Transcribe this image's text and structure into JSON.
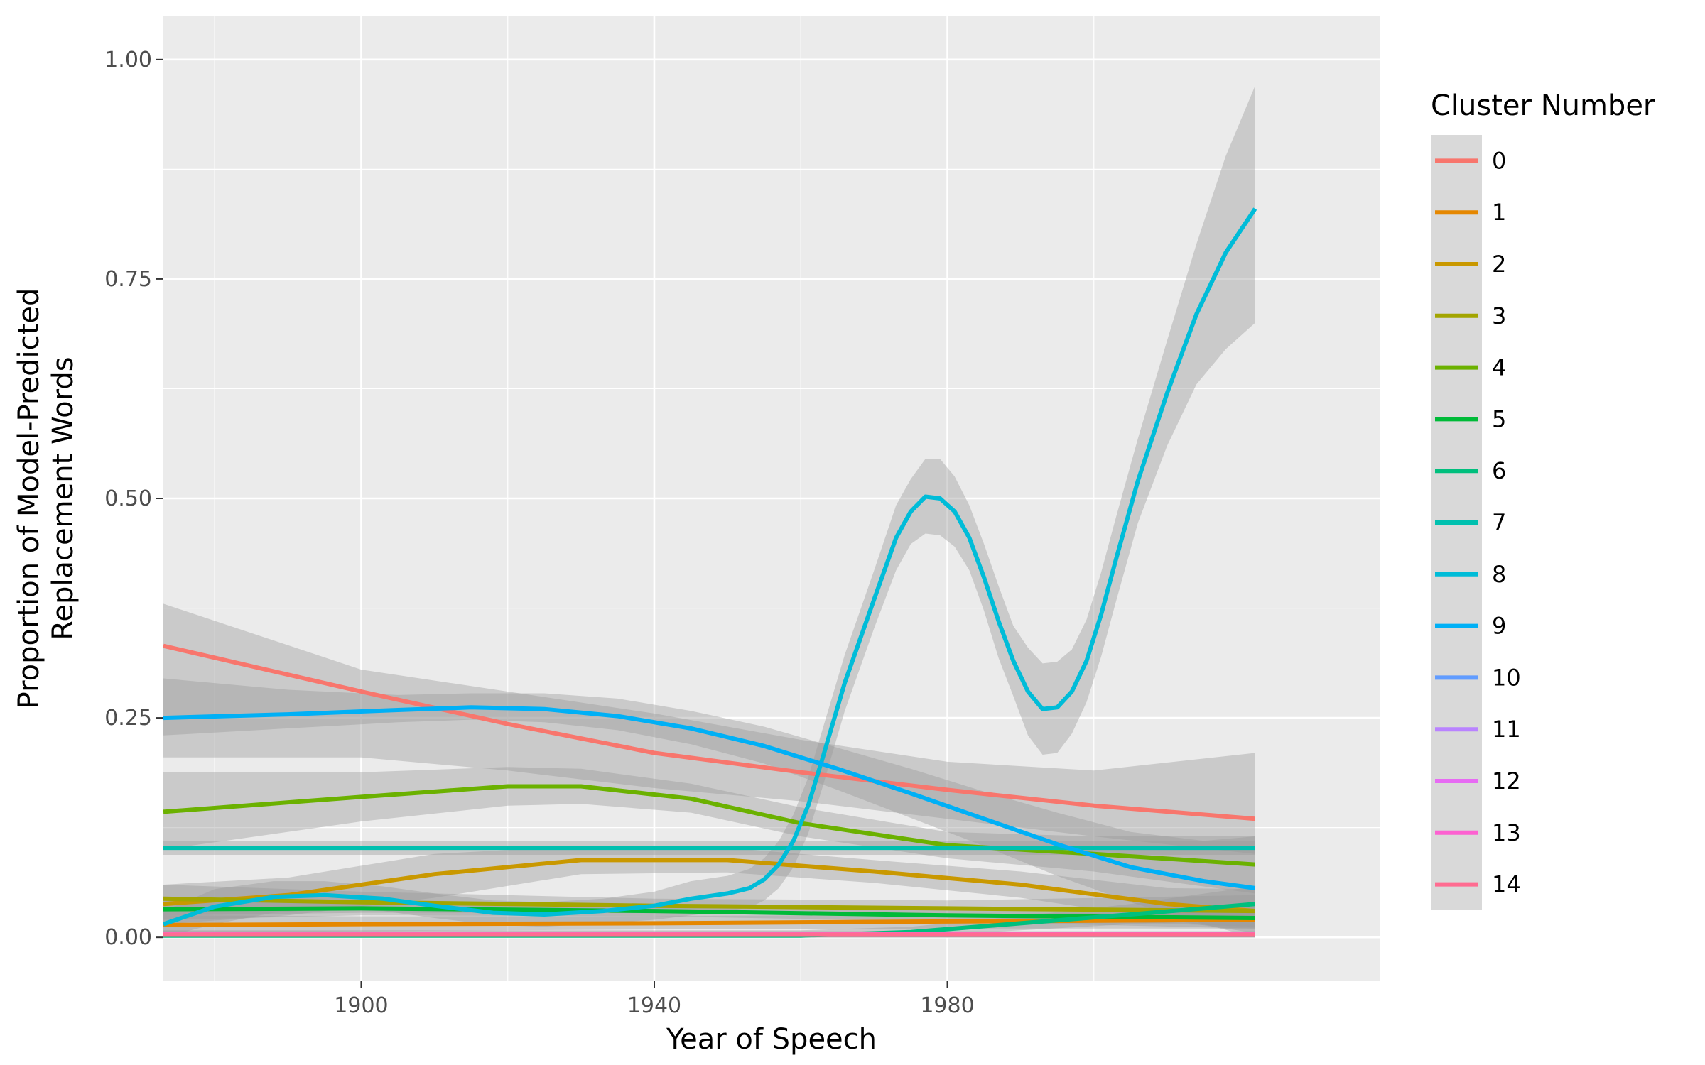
{
  "chart_data": {
    "type": "line",
    "title": "",
    "xlabel": "Year of Speech",
    "ylabel_lines": [
      "Proportion of Model-Predicted",
      "Replacement Words"
    ],
    "xlim": [
      1873,
      2039
    ],
    "ylim": [
      -0.05,
      1.05
    ],
    "x_ticks": [
      1900,
      1940,
      1980
    ],
    "x_tick_labels": [
      "1900",
      "1940",
      "1980"
    ],
    "x_minor_ticks": [
      1880,
      1920,
      1960,
      2000
    ],
    "y_ticks": [
      0,
      0.25,
      0.5,
      0.75,
      1.0
    ],
    "y_tick_labels": [
      "0.00",
      "0.25",
      "0.50",
      "0.75",
      "1.00"
    ],
    "grid": true,
    "legend": {
      "title": "Cluster Number",
      "position": "right"
    },
    "series": [
      {
        "name": "0",
        "color": "#F8766D",
        "x": [
          1873,
          1900,
          1920,
          1940,
          1960,
          1980,
          2000,
          2022
        ],
        "y": [
          0.332,
          0.28,
          0.243,
          0.21,
          0.188,
          0.168,
          0.15,
          0.135
        ],
        "ci_lower": [
          0.205,
          0.205,
          0.19,
          0.17,
          0.155,
          0.135,
          0.115,
          0.095
        ],
        "ci_upper": [
          0.38,
          0.305,
          0.28,
          0.255,
          0.225,
          0.2,
          0.19,
          0.21
        ]
      },
      {
        "name": "1",
        "color": "#E58700",
        "x": [
          1873,
          1900,
          1940,
          1980,
          2022
        ],
        "y": [
          0.014,
          0.015,
          0.016,
          0.018,
          0.02
        ],
        "ci_lower": [
          0.005,
          0.007,
          0.009,
          0.01,
          0.01
        ],
        "ci_upper": [
          0.025,
          0.024,
          0.024,
          0.026,
          0.03
        ]
      },
      {
        "name": "2",
        "color": "#C99800",
        "x": [
          1873,
          1890,
          1910,
          1930,
          1950,
          1970,
          1990,
          2010,
          2022
        ],
        "y": [
          0.038,
          0.048,
          0.072,
          0.088,
          0.088,
          0.075,
          0.06,
          0.038,
          0.03
        ],
        "ci_lower": [
          0.015,
          0.025,
          0.045,
          0.072,
          0.074,
          0.062,
          0.045,
          0.02,
          0.005
        ],
        "ci_upper": [
          0.06,
          0.068,
          0.095,
          0.104,
          0.102,
          0.088,
          0.075,
          0.056,
          0.055
        ]
      },
      {
        "name": "3",
        "color": "#A3A500",
        "x": [
          1873,
          1900,
          1940,
          1980,
          2022
        ],
        "y": [
          0.044,
          0.04,
          0.036,
          0.033,
          0.03
        ],
        "ci_lower": [
          0.025,
          0.028,
          0.028,
          0.024,
          0.012
        ],
        "ci_upper": [
          0.06,
          0.052,
          0.044,
          0.042,
          0.048
        ]
      },
      {
        "name": "4",
        "color": "#6BB100",
        "x": [
          1873,
          1900,
          1920,
          1930,
          1945,
          1960,
          1980,
          2000,
          2022
        ],
        "y": [
          0.143,
          0.16,
          0.172,
          0.172,
          0.158,
          0.13,
          0.105,
          0.095,
          0.083
        ],
        "ci_lower": [
          0.1,
          0.132,
          0.15,
          0.152,
          0.142,
          0.115,
          0.09,
          0.075,
          0.05
        ],
        "ci_upper": [
          0.188,
          0.188,
          0.194,
          0.192,
          0.175,
          0.148,
          0.12,
          0.115,
          0.115
        ]
      },
      {
        "name": "5",
        "color": "#00BA38",
        "x": [
          1873,
          1900,
          1940,
          1980,
          2022
        ],
        "y": [
          0.032,
          0.033,
          0.03,
          0.025,
          0.022
        ],
        "ci_lower": [
          0.02,
          0.025,
          0.024,
          0.018,
          0.01
        ],
        "ci_upper": [
          0.045,
          0.041,
          0.036,
          0.032,
          0.034
        ]
      },
      {
        "name": "6",
        "color": "#00BF7D",
        "x": [
          1873,
          1960,
          1975,
          1990,
          2005,
          2022
        ],
        "y": [
          0.002,
          0.002,
          0.006,
          0.016,
          0.026,
          0.038
        ],
        "ci_lower": [
          0.0,
          0.0,
          0.001,
          0.008,
          0.015,
          0.02
        ],
        "ci_upper": [
          0.008,
          0.008,
          0.012,
          0.024,
          0.038,
          0.058
        ]
      },
      {
        "name": "7",
        "color": "#00C0AF",
        "x": [
          1873,
          2022
        ],
        "y": [
          0.102,
          0.102
        ],
        "ci_lower": [
          0.094,
          0.094
        ],
        "ci_upper": [
          0.11,
          0.11
        ]
      },
      {
        "name": "8",
        "color": "#00BCD8",
        "x": [
          1873,
          1880,
          1888,
          1895,
          1903,
          1910,
          1918,
          1925,
          1933,
          1940,
          1945,
          1950,
          1953,
          1955,
          1957,
          1959,
          1961,
          1963,
          1966,
          1970,
          1973,
          1975,
          1977,
          1979,
          1981,
          1983,
          1985,
          1987,
          1989,
          1991,
          1993,
          1995,
          1997,
          1999,
          2001,
          2003,
          2006,
          2010,
          2014,
          2018,
          2022
        ],
        "y": [
          0.015,
          0.035,
          0.046,
          0.048,
          0.044,
          0.036,
          0.028,
          0.026,
          0.03,
          0.036,
          0.044,
          0.05,
          0.056,
          0.066,
          0.083,
          0.11,
          0.15,
          0.205,
          0.29,
          0.385,
          0.455,
          0.485,
          0.502,
          0.5,
          0.485,
          0.455,
          0.41,
          0.36,
          0.315,
          0.28,
          0.26,
          0.262,
          0.28,
          0.315,
          0.368,
          0.43,
          0.52,
          0.62,
          0.71,
          0.78,
          0.83
        ],
        "ci_lower": [
          0.0,
          0.015,
          0.028,
          0.032,
          0.03,
          0.022,
          0.014,
          0.012,
          0.016,
          0.02,
          0.025,
          0.03,
          0.034,
          0.042,
          0.056,
          0.08,
          0.118,
          0.172,
          0.258,
          0.352,
          0.418,
          0.448,
          0.46,
          0.458,
          0.445,
          0.418,
          0.372,
          0.318,
          0.275,
          0.23,
          0.208,
          0.21,
          0.232,
          0.268,
          0.32,
          0.382,
          0.472,
          0.56,
          0.63,
          0.67,
          0.7
        ],
        "ci_upper": [
          0.03,
          0.055,
          0.064,
          0.064,
          0.058,
          0.05,
          0.042,
          0.04,
          0.044,
          0.052,
          0.064,
          0.07,
          0.078,
          0.09,
          0.11,
          0.14,
          0.182,
          0.238,
          0.322,
          0.418,
          0.492,
          0.522,
          0.545,
          0.545,
          0.525,
          0.492,
          0.448,
          0.4,
          0.355,
          0.33,
          0.312,
          0.314,
          0.328,
          0.362,
          0.416,
          0.478,
          0.568,
          0.68,
          0.79,
          0.89,
          0.97
        ]
      },
      {
        "name": "9",
        "color": "#00B0F6",
        "x": [
          1873,
          1890,
          1905,
          1915,
          1925,
          1935,
          1945,
          1955,
          1965,
          1975,
          1985,
          1995,
          2005,
          2015,
          2022
        ],
        "y": [
          0.25,
          0.254,
          0.259,
          0.262,
          0.26,
          0.252,
          0.238,
          0.218,
          0.192,
          0.164,
          0.135,
          0.106,
          0.08,
          0.064,
          0.056
        ],
        "ci_lower": [
          0.23,
          0.238,
          0.245,
          0.248,
          0.245,
          0.236,
          0.22,
          0.198,
          0.168,
          0.136,
          0.104,
          0.07,
          0.04,
          0.015,
          0.0
        ],
        "ci_upper": [
          0.295,
          0.282,
          0.276,
          0.278,
          0.278,
          0.272,
          0.258,
          0.24,
          0.216,
          0.192,
          0.166,
          0.142,
          0.12,
          0.11,
          0.115
        ]
      },
      {
        "name": "10",
        "color": "#619CFF",
        "x": [
          1873,
          2022
        ],
        "y": [
          0.003,
          0.003
        ],
        "ci_lower": [
          0.0,
          0.0
        ],
        "ci_upper": [
          0.006,
          0.006
        ]
      },
      {
        "name": "11",
        "color": "#B983FF",
        "x": [
          1873,
          2022
        ],
        "y": [
          0.003,
          0.003
        ],
        "ci_lower": [
          0.0,
          0.0
        ],
        "ci_upper": [
          0.006,
          0.006
        ]
      },
      {
        "name": "12",
        "color": "#E76BF3",
        "x": [
          1873,
          2022
        ],
        "y": [
          0.003,
          0.003
        ],
        "ci_lower": [
          0.0,
          0.0
        ],
        "ci_upper": [
          0.006,
          0.006
        ]
      },
      {
        "name": "13",
        "color": "#FD61D1",
        "x": [
          1873,
          2022
        ],
        "y": [
          0.004,
          0.004
        ],
        "ci_lower": [
          0.0,
          0.0
        ],
        "ci_upper": [
          0.007,
          0.007
        ]
      },
      {
        "name": "14",
        "color": "#FF6C91",
        "x": [
          1873,
          2022
        ],
        "y": [
          0.003,
          0.003
        ],
        "ci_lower": [
          0.0,
          0.0
        ],
        "ci_upper": [
          0.006,
          0.006
        ]
      }
    ]
  }
}
